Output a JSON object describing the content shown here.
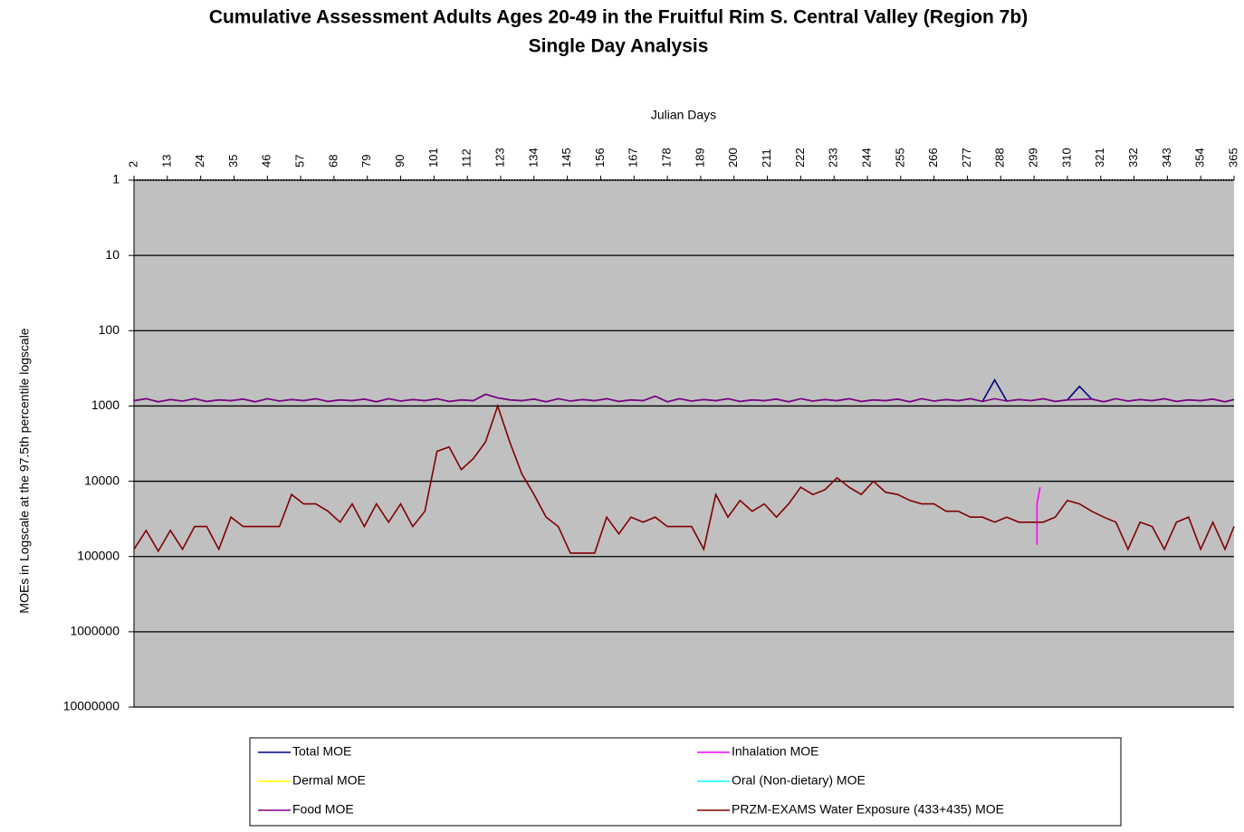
{
  "chart_data": {
    "type": "line",
    "title": "Cumulative Assessment Adults Ages 20-49 in the Fruitful Rim S. Central Valley (Region 7b)",
    "subtitle": "Single Day Analysis",
    "x_label": "Julian Days",
    "y_label": "MOEs in Logscale at the 97.5th percentile logscale",
    "log_scale": true,
    "y_inverted": true,
    "grid": true,
    "xlim": [
      2,
      365
    ],
    "xticks": [
      2,
      13,
      24,
      35,
      46,
      57,
      68,
      79,
      90,
      101,
      112,
      123,
      134,
      145,
      156,
      167,
      178,
      189,
      200,
      211,
      222,
      233,
      244,
      255,
      266,
      277,
      288,
      299,
      310,
      321,
      332,
      343,
      354,
      365
    ],
    "ylim": [
      1,
      10000000
    ],
    "yticks": [
      1,
      10,
      100,
      1000,
      10000,
      100000,
      1000000,
      10000000
    ],
    "x": [
      2,
      6,
      10,
      14,
      18,
      22,
      26,
      30,
      34,
      38,
      42,
      46,
      50,
      54,
      58,
      62,
      66,
      70,
      74,
      78,
      82,
      86,
      90,
      94,
      98,
      102,
      106,
      110,
      114,
      118,
      122,
      126,
      130,
      134,
      138,
      142,
      146,
      150,
      154,
      158,
      162,
      166,
      170,
      174,
      178,
      182,
      186,
      190,
      194,
      198,
      202,
      206,
      210,
      214,
      218,
      222,
      226,
      230,
      234,
      238,
      242,
      246,
      250,
      254,
      258,
      262,
      266,
      270,
      274,
      278,
      282,
      286,
      290,
      294,
      298,
      302,
      306,
      310,
      314,
      318,
      322,
      326,
      330,
      334,
      338,
      342,
      346,
      350,
      354,
      358,
      362,
      365
    ],
    "series": [
      {
        "name": "Total MOE",
        "color": "#000080",
        "values": [
          850,
          800,
          880,
          820,
          860,
          800,
          870,
          830,
          850,
          810,
          880,
          800,
          860,
          820,
          850,
          800,
          870,
          830,
          850,
          810,
          880,
          800,
          860,
          820,
          850,
          800,
          870,
          830,
          850,
          700,
          780,
          830,
          850,
          810,
          880,
          800,
          860,
          820,
          850,
          800,
          870,
          830,
          850,
          740,
          880,
          800,
          860,
          820,
          850,
          800,
          870,
          830,
          850,
          810,
          880,
          800,
          860,
          820,
          850,
          800,
          870,
          830,
          850,
          810,
          880,
          800,
          860,
          820,
          850,
          800,
          870,
          450,
          860,
          820,
          850,
          800,
          870,
          830,
          550,
          810,
          880,
          800,
          860,
          820,
          850,
          800,
          870,
          830,
          850,
          810,
          880,
          820
        ]
      },
      {
        "name": "Inhalation MOE",
        "color": "#ff00ff",
        "x": [
          300,
          300,
          301
        ],
        "values": [
          70000,
          20000,
          12000
        ]
      },
      {
        "name": "Dermal MOE",
        "color": "#ffff00",
        "x": [],
        "values": []
      },
      {
        "name": "Oral (Non-dietary) MOE",
        "color": "#00ffff",
        "x": [],
        "values": []
      },
      {
        "name": "Food MOE",
        "color": "#800080",
        "values": [
          850,
          800,
          880,
          820,
          860,
          800,
          870,
          830,
          850,
          810,
          880,
          800,
          860,
          820,
          850,
          800,
          870,
          830,
          850,
          810,
          880,
          800,
          860,
          820,
          850,
          800,
          870,
          830,
          850,
          700,
          780,
          830,
          850,
          810,
          880,
          800,
          860,
          820,
          850,
          800,
          870,
          830,
          850,
          740,
          880,
          800,
          860,
          820,
          850,
          800,
          870,
          830,
          850,
          810,
          880,
          800,
          860,
          820,
          850,
          800,
          870,
          830,
          850,
          810,
          880,
          800,
          860,
          820,
          850,
          800,
          870,
          800,
          860,
          820,
          850,
          800,
          870,
          830,
          820,
          810,
          880,
          800,
          860,
          820,
          850,
          800,
          870,
          830,
          850,
          810,
          880,
          820
        ]
      },
      {
        "name": "PRZM-EXAMS Water Exposure (433+435) MOE",
        "color": "#800000",
        "values": [
          80000,
          45000,
          85000,
          45000,
          80000,
          40000,
          40000,
          80000,
          30000,
          40000,
          40000,
          40000,
          40000,
          15000,
          20000,
          20000,
          25000,
          35000,
          20000,
          40000,
          20000,
          35000,
          20000,
          40000,
          25000,
          4000,
          3500,
          7000,
          5000,
          3000,
          1000,
          3000,
          8000,
          15000,
          30000,
          40000,
          90000,
          90000,
          90000,
          30000,
          50000,
          30000,
          35000,
          30000,
          40000,
          40000,
          40000,
          80000,
          15000,
          30000,
          18000,
          25000,
          20000,
          30000,
          20000,
          12000,
          15000,
          13000,
          9000,
          12000,
          15000,
          10000,
          14000,
          15000,
          18000,
          20000,
          20000,
          25000,
          25000,
          30000,
          30000,
          35000,
          30000,
          35000,
          35000,
          35000,
          30000,
          18000,
          20000,
          25000,
          30000,
          35000,
          80000,
          35000,
          40000,
          80000,
          35000,
          30000,
          80000,
          35000,
          80000,
          40000
        ]
      }
    ]
  }
}
